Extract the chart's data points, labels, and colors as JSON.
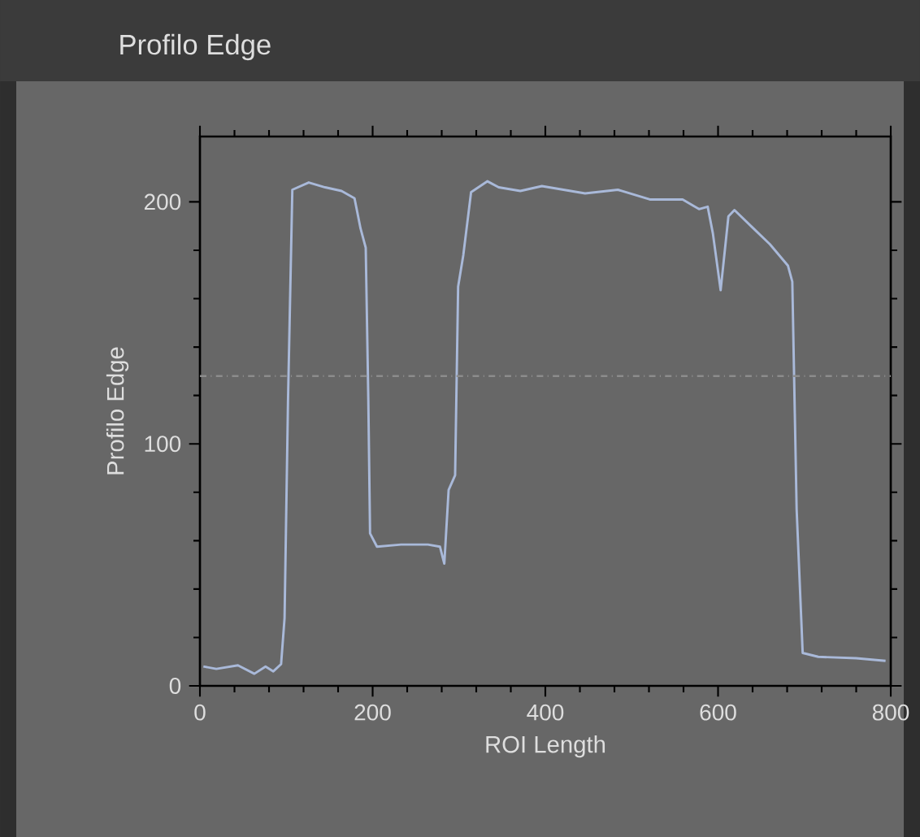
{
  "chart_data": {
    "type": "line",
    "title": "Profilo Edge",
    "xlabel": "ROI Length",
    "ylabel": "Profilo Edge",
    "xlim": [
      0,
      800
    ],
    "ylim": [
      0,
      227
    ],
    "xticks": [
      0,
      200,
      400,
      600,
      800
    ],
    "yticks": [
      0,
      100,
      200
    ],
    "grid": false,
    "marker": "none",
    "line_style": "solid",
    "ref_lines": [
      {
        "axis": "y",
        "value": 128,
        "label": null,
        "color": "#8c8c8c",
        "line_style": "dashdot"
      }
    ],
    "series": [
      {
        "color": "#a9b9d9",
        "x": [
          4,
          19,
          44,
          63,
          76,
          85,
          94,
          98,
          102,
          107,
          126,
          145,
          164,
          179,
          186,
          192,
          195,
          197,
          205,
          233,
          264,
          278,
          283,
          288,
          295.5,
          299,
          305,
          314,
          333,
          346,
          371,
          396,
          446,
          484,
          521,
          559,
          578,
          588,
          594,
          603,
          612,
          619,
          641,
          660,
          681,
          686,
          691,
          698,
          716,
          760,
          794
        ],
        "values": [
          8,
          7,
          8.5,
          5,
          8,
          6,
          9,
          28,
          118,
          205,
          208,
          206,
          204.5,
          201.5,
          189,
          181,
          118,
          63,
          57.5,
          58.4,
          58.4,
          57.5,
          50.5,
          81,
          87,
          165,
          178,
          204,
          208.5,
          206,
          204.5,
          206.5,
          203.5,
          205,
          201,
          201,
          197,
          198,
          187,
          163.5,
          194,
          196.6,
          189,
          182.5,
          173.6,
          167,
          73,
          13.6,
          12,
          11.4,
          10.3
        ]
      }
    ]
  }
}
